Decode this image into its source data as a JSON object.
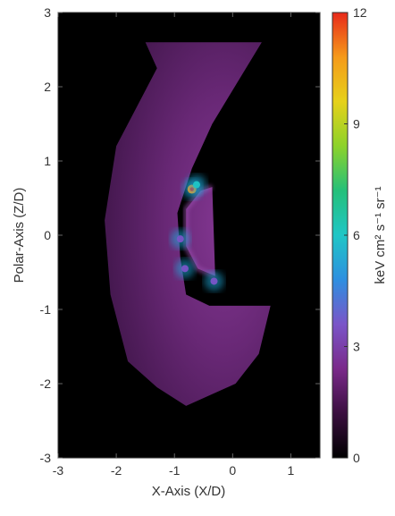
{
  "chart_data": {
    "type": "heatmap",
    "title": "",
    "xlabel": "X-Axis (X/D)",
    "ylabel": "Polar-Axis (Z/D)",
    "xlim": [
      -3,
      1.5
    ],
    "ylim": [
      -3,
      3
    ],
    "x_ticks": [
      -3,
      -2,
      -1,
      0,
      1
    ],
    "y_ticks": [
      -3,
      -2,
      -1,
      0,
      1,
      2,
      3
    ],
    "colorbar": {
      "label": "keV cm² s⁻¹ sr⁻¹",
      "range": [
        0,
        12
      ],
      "ticks": [
        0,
        3,
        6,
        9,
        12
      ],
      "colors": [
        "#000000",
        "#3a0f3f",
        "#7a2a8a",
        "#7a55c8",
        "#2e8fe0",
        "#1fc6c6",
        "#25c07a",
        "#8cd22a",
        "#e6d11a",
        "#f59a1a",
        "#e8291a"
      ]
    },
    "background_color": "#000000",
    "emission_region": {
      "shape": "crescent shell",
      "outer_boundary": [
        [
          -1.5,
          2.6
        ],
        [
          -1.3,
          2.25
        ],
        [
          -2.0,
          1.2
        ],
        [
          -2.2,
          0.2
        ],
        [
          -2.1,
          -0.8
        ],
        [
          -1.8,
          -1.7
        ],
        [
          -1.3,
          -2.05
        ],
        [
          -0.8,
          -2.3
        ],
        [
          0.05,
          -2.0
        ],
        [
          0.45,
          -1.6
        ],
        [
          0.65,
          -0.95
        ]
      ],
      "inner_boundary": [
        [
          0.5,
          2.6
        ],
        [
          -0.35,
          1.5
        ],
        [
          -0.7,
          0.9
        ],
        [
          -0.95,
          0.3
        ],
        [
          -0.9,
          -0.3
        ],
        [
          -0.8,
          -0.8
        ],
        [
          -0.4,
          -0.95
        ]
      ],
      "cavity_edge": [
        [
          -0.35,
          0.65
        ],
        [
          -0.55,
          0.6
        ],
        [
          -0.8,
          0.35
        ],
        [
          -0.8,
          -0.15
        ],
        [
          -0.6,
          -0.45
        ],
        [
          -0.3,
          -0.55
        ]
      ],
      "typical_level": 1.2
    },
    "hotspots": [
      {
        "x": -0.7,
        "y": 0.62,
        "value": 10.5
      },
      {
        "x": -0.62,
        "y": 0.68,
        "value": 5.5
      },
      {
        "x": -0.9,
        "y": -0.05,
        "value": 4.0
      },
      {
        "x": -0.82,
        "y": -0.45,
        "value": 4.0
      },
      {
        "x": -0.32,
        "y": -0.62,
        "value": 3.5
      }
    ]
  }
}
